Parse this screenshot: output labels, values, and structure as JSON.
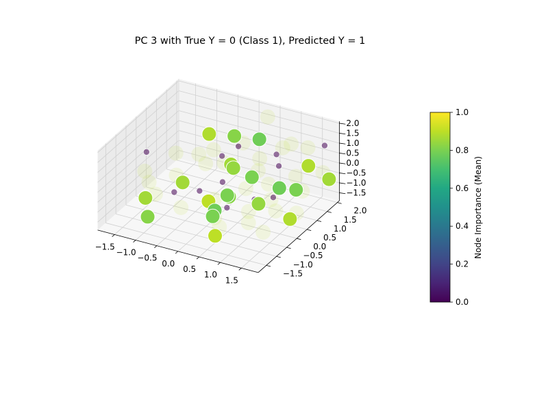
{
  "chart_data": {
    "type": "scatter",
    "title": "PC 3 with True Y = 0 (Class 1), Predicted Y = 1",
    "x_ticks": [
      "−1.5",
      "−1.0",
      "−0.5",
      "0.0",
      "0.5",
      "1.0",
      "1.5"
    ],
    "y_ticks": [
      "−1.5",
      "−1.0",
      "−0.5",
      "0.0",
      "0.5",
      "1.0",
      "1.5",
      "2.0"
    ],
    "z_ticks": [
      "−1.5",
      "−1.0",
      "−0.5",
      "0.0",
      "0.5",
      "1.0",
      "1.5",
      "2.0"
    ],
    "xlim": [
      -1.9,
      1.9
    ],
    "ylim": [
      -1.9,
      2.1
    ],
    "zlim": [
      -1.9,
      2.1
    ],
    "grid": true,
    "colorbar": {
      "label": "Node Importance (Mean)",
      "ticks": [
        "0.0",
        "0.2",
        "0.4",
        "0.6",
        "0.8",
        "1.0"
      ],
      "range": [
        0,
        1
      ],
      "colormap": "viridis"
    },
    "points_high": [
      {
        "x": -0.2,
        "y": 1.3,
        "z": 0.9,
        "v": 0.82
      },
      {
        "x": 0.2,
        "y": 1.7,
        "z": 0.6,
        "v": 0.78
      },
      {
        "x": -0.7,
        "y": 1.1,
        "z": 0.9,
        "v": 0.88
      },
      {
        "x": 0.2,
        "y": 0.3,
        "z": 0.6,
        "v": 0.86
      },
      {
        "x": 0.4,
        "y": 0.0,
        "z": 0.8,
        "v": 0.84
      },
      {
        "x": 0.6,
        "y": 0.5,
        "z": 0.0,
        "v": 0.8
      },
      {
        "x": 1.2,
        "y": 0.6,
        "z": -0.3,
        "v": 0.78
      },
      {
        "x": 1.5,
        "y": 0.8,
        "z": -0.4,
        "v": 0.8
      },
      {
        "x": 1.6,
        "y": 1.2,
        "z": 0.5,
        "v": 0.88
      },
      {
        "x": 1.8,
        "y": 1.8,
        "z": -0.6,
        "v": 0.86
      },
      {
        "x": -0.8,
        "y": 0.0,
        "z": -0.6,
        "v": 0.86
      },
      {
        "x": 0.3,
        "y": 0.0,
        "z": -0.7,
        "v": 0.82
      },
      {
        "x": 0.4,
        "y": -0.3,
        "z": -0.3,
        "v": 0.8
      },
      {
        "x": 0.9,
        "y": 0.2,
        "z": -0.9,
        "v": 0.84
      },
      {
        "x": 0.1,
        "y": -0.6,
        "z": -0.5,
        "v": 0.9
      },
      {
        "x": 0.2,
        "y": -0.5,
        "z": -1.0,
        "v": 0.78
      },
      {
        "x": -1.2,
        "y": -1.0,
        "z": -0.7,
        "v": 0.86
      },
      {
        "x": 1.5,
        "y": 0.5,
        "z": -1.6,
        "v": 0.88
      },
      {
        "x": -1.1,
        "y": -1.1,
        "z": -1.5,
        "v": 0.82
      },
      {
        "x": 0.2,
        "y": -0.6,
        "z": -1.2,
        "v": 0.8
      },
      {
        "x": 0.4,
        "y": -0.9,
        "z": -1.8,
        "v": 0.9
      }
    ],
    "points_low": [
      {
        "x": -1.8,
        "y": 0.3,
        "z": 0.1
      },
      {
        "x": -0.2,
        "y": 1.5,
        "z": 0.2
      },
      {
        "x": -0.3,
        "y": 0.9,
        "z": 0.2
      },
      {
        "x": 0.0,
        "y": 0.7,
        "z": 0.0
      },
      {
        "x": 0.7,
        "y": 1.5,
        "z": 0.3
      },
      {
        "x": 0.9,
        "y": 1.2,
        "z": 0.1
      },
      {
        "x": 1.6,
        "y": 2.0,
        "z": 0.8
      },
      {
        "x": 1.2,
        "y": 0.3,
        "z": -0.5
      },
      {
        "x": -0.4,
        "y": 0.0,
        "z": -0.8
      },
      {
        "x": 0.9,
        "y": 0.0,
        "z": -0.5
      },
      {
        "x": -1.0,
        "y": 0.0,
        "z": -1.2
      },
      {
        "x": 0.2,
        "y": 0.1,
        "z": -1.4
      },
      {
        "x": 0.0,
        "y": 0.3,
        "z": -0.4
      }
    ],
    "points_faint": [
      {
        "x": 0.3,
        "y": 1.9,
        "z": 1.6
      },
      {
        "x": 0.1,
        "y": 1.1,
        "z": 0.9
      },
      {
        "x": 0.8,
        "y": 1.6,
        "z": 0.6
      },
      {
        "x": -0.5,
        "y": 0.9,
        "z": 0.4
      },
      {
        "x": -0.8,
        "y": 0.8,
        "z": 0.1
      },
      {
        "x": 1.3,
        "y": 1.8,
        "z": 0.7
      },
      {
        "x": 1.3,
        "y": 1.2,
        "z": -0.2
      },
      {
        "x": 1.6,
        "y": 0.9,
        "z": -0.5
      },
      {
        "x": 1.0,
        "y": 0.6,
        "z": -1.0
      },
      {
        "x": 0.9,
        "y": -0.3,
        "z": -1.4
      },
      {
        "x": 1.2,
        "y": -0.2,
        "z": -1.8
      },
      {
        "x": 0.1,
        "y": -0.3,
        "z": -1.6
      },
      {
        "x": -0.6,
        "y": -0.5,
        "z": -1.3
      },
      {
        "x": -1.3,
        "y": -0.3,
        "z": -1.2
      },
      {
        "x": 0.5,
        "y": -0.9,
        "z": -1.3
      },
      {
        "x": 1.0,
        "y": -0.5,
        "z": -0.6
      },
      {
        "x": 1.7,
        "y": 0.4,
        "z": -1.1
      },
      {
        "x": 0.7,
        "y": 0.6,
        "z": 0.3
      },
      {
        "x": -0.4,
        "y": 0.3,
        "z": 0.3
      },
      {
        "x": -0.9,
        "y": -0.1,
        "z": -0.2
      },
      {
        "x": -1.5,
        "y": -0.2,
        "z": -0.8
      },
      {
        "x": 0.0,
        "y": -0.1,
        "z": -0.9
      },
      {
        "x": 0.6,
        "y": 0.2,
        "z": -0.3
      },
      {
        "x": 1.4,
        "y": 0.0,
        "z": -0.8
      },
      {
        "x": -0.2,
        "y": 0.8,
        "z": 0.0
      },
      {
        "x": 0.4,
        "y": 1.3,
        "z": 0.1
      },
      {
        "x": 1.8,
        "y": 1.5,
        "z": 0.0
      },
      {
        "x": 1.0,
        "y": 1.6,
        "z": 0.9
      },
      {
        "x": -1.2,
        "y": 0.5,
        "z": 0.2
      },
      {
        "x": -1.6,
        "y": -0.2,
        "z": -0.3
      },
      {
        "x": 0.8,
        "y": 0.9,
        "z": -0.6
      }
    ]
  }
}
